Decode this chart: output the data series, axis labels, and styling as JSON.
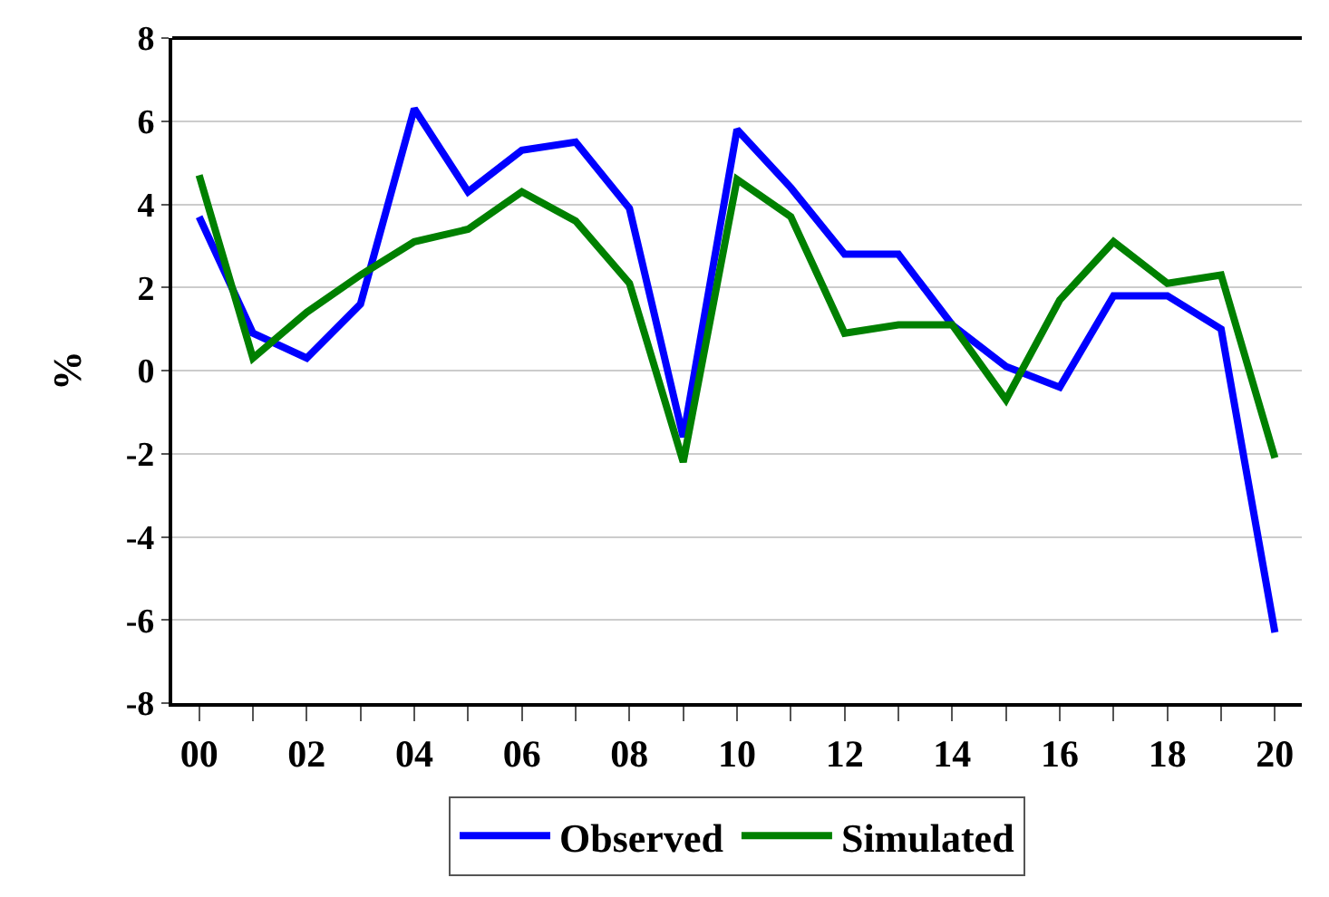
{
  "chart_data": {
    "type": "line",
    "ylabel": "%",
    "x": [
      0,
      1,
      2,
      3,
      4,
      5,
      6,
      7,
      8,
      9,
      10,
      11,
      12,
      13,
      14,
      15,
      16,
      17,
      18,
      19,
      20
    ],
    "xlim": [
      -0.5,
      20.5
    ],
    "xticks": [
      {
        "value": 0,
        "label": "00"
      },
      {
        "value": 1,
        "label": null
      },
      {
        "value": 2,
        "label": "02"
      },
      {
        "value": 3,
        "label": null
      },
      {
        "value": 4,
        "label": "04"
      },
      {
        "value": 5,
        "label": null
      },
      {
        "value": 6,
        "label": "06"
      },
      {
        "value": 7,
        "label": null
      },
      {
        "value": 8,
        "label": "08"
      },
      {
        "value": 9,
        "label": null
      },
      {
        "value": 10,
        "label": "10"
      },
      {
        "value": 11,
        "label": null
      },
      {
        "value": 12,
        "label": "12"
      },
      {
        "value": 13,
        "label": null
      },
      {
        "value": 14,
        "label": "14"
      },
      {
        "value": 15,
        "label": null
      },
      {
        "value": 16,
        "label": "16"
      },
      {
        "value": 17,
        "label": null
      },
      {
        "value": 18,
        "label": "18"
      },
      {
        "value": 19,
        "label": null
      },
      {
        "value": 20,
        "label": "20"
      }
    ],
    "ylim": [
      -8,
      8
    ],
    "yticks": [
      -8,
      -6,
      -4,
      -2,
      0,
      2,
      4,
      6,
      8
    ],
    "grid": "y",
    "legend": "bottom",
    "marker": "none",
    "line_style": "solid",
    "series": [
      {
        "name": "Observed",
        "color": "#0000ff",
        "values": [
          3.7,
          0.9,
          0.3,
          1.6,
          6.3,
          4.3,
          5.3,
          5.5,
          3.9,
          -1.6,
          5.8,
          4.4,
          2.8,
          2.8,
          1.1,
          0.1,
          -0.4,
          1.8,
          1.8,
          1.0,
          -6.3
        ]
      },
      {
        "name": "Simulated",
        "color": "#008000",
        "values": [
          4.7,
          0.3,
          1.4,
          2.3,
          3.1,
          3.4,
          4.3,
          3.6,
          2.1,
          -2.2,
          4.6,
          3.7,
          0.9,
          1.1,
          1.1,
          -0.7,
          1.7,
          3.1,
          2.1,
          2.3,
          -2.1
        ]
      }
    ]
  }
}
